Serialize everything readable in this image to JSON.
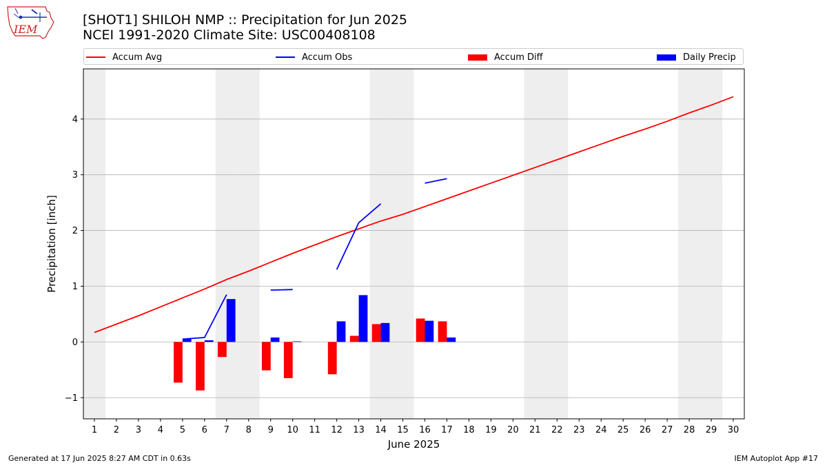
{
  "header": {
    "logo_text": "IEM",
    "title_line1": "[SHOT1] SHILOH NMP :: Precipitation for Jun 2025",
    "title_line2": "NCEI 1991-2020 Climate Site: USC00408108"
  },
  "legend": [
    {
      "label": "Accum Avg",
      "kind": "line",
      "color": "#ff0000"
    },
    {
      "label": "Accum Obs",
      "kind": "line",
      "color": "#0000ff"
    },
    {
      "label": "Accum Diff",
      "kind": "bar",
      "color": "#ff0000"
    },
    {
      "label": "Daily Precip",
      "kind": "bar",
      "color": "#0000ff"
    }
  ],
  "footer": {
    "generated": "Generated at 17 Jun 2025 8:27 AM CDT in 0.63s",
    "app": "IEM Autoplot App #17"
  },
  "chart_data": {
    "type": "bar",
    "xlabel": "June 2025",
    "ylabel": "Precipitation [inch]",
    "xlim": [
      0.5,
      30.5
    ],
    "ylim": [
      -1.38,
      4.9
    ],
    "yticks": [
      -1,
      0,
      1,
      2,
      3,
      4
    ],
    "ytick_labels": [
      "−1",
      "0",
      "1",
      "2",
      "3",
      "4"
    ],
    "x": [
      1,
      2,
      3,
      4,
      5,
      6,
      7,
      8,
      9,
      10,
      11,
      12,
      13,
      14,
      15,
      16,
      17,
      18,
      19,
      20,
      21,
      22,
      23,
      24,
      25,
      26,
      27,
      28,
      29,
      30
    ],
    "weekend_days": [
      1,
      7,
      8,
      14,
      15,
      21,
      22,
      28,
      29
    ],
    "grid": "horizontal",
    "legend_position": "top",
    "colors": {
      "avg": "#ff0000",
      "obs": "#0000ff",
      "diff": "#ff0000",
      "daily": "#0000ff",
      "weekend": "#eeeeee",
      "grid": "#b0b0b0"
    },
    "series": [
      {
        "name": "Accum Avg",
        "kind": "line",
        "values": [
          0.17,
          0.32,
          0.47,
          0.63,
          0.79,
          0.95,
          1.12,
          1.27,
          1.43,
          1.59,
          1.74,
          1.89,
          2.03,
          2.17,
          2.29,
          2.43,
          2.57,
          2.71,
          2.85,
          2.99,
          3.13,
          3.27,
          3.41,
          3.55,
          3.69,
          3.82,
          3.96,
          4.11,
          4.25,
          4.4
        ]
      },
      {
        "name": "Accum Obs",
        "kind": "line",
        "segments": [
          [
            [
              5,
              0.05
            ],
            [
              6,
              0.08
            ],
            [
              7,
              0.85
            ]
          ],
          [
            [
              9,
              0.93
            ],
            [
              10,
              0.94
            ]
          ],
          [
            [
              12,
              1.3
            ],
            [
              13,
              2.14
            ],
            [
              14,
              2.48
            ]
          ],
          [
            [
              16,
              2.85
            ],
            [
              17,
              2.93
            ]
          ]
        ]
      },
      {
        "name": "Accum Diff",
        "kind": "bar",
        "points": [
          [
            5,
            -0.73
          ],
          [
            6,
            -0.87
          ],
          [
            7,
            -0.27
          ],
          [
            9,
            -0.51
          ],
          [
            10,
            -0.65
          ],
          [
            12,
            -0.58
          ],
          [
            13,
            0.11
          ],
          [
            14,
            0.32
          ],
          [
            16,
            0.42
          ],
          [
            17,
            0.37
          ]
        ]
      },
      {
        "name": "Daily Precip",
        "kind": "bar",
        "points": [
          [
            5,
            0.05
          ],
          [
            6,
            0.03
          ],
          [
            7,
            0.77
          ],
          [
            9,
            0.08
          ],
          [
            10,
            0.01
          ],
          [
            12,
            0.37
          ],
          [
            13,
            0.84
          ],
          [
            14,
            0.34
          ],
          [
            16,
            0.38
          ],
          [
            17,
            0.08
          ]
        ]
      }
    ]
  }
}
